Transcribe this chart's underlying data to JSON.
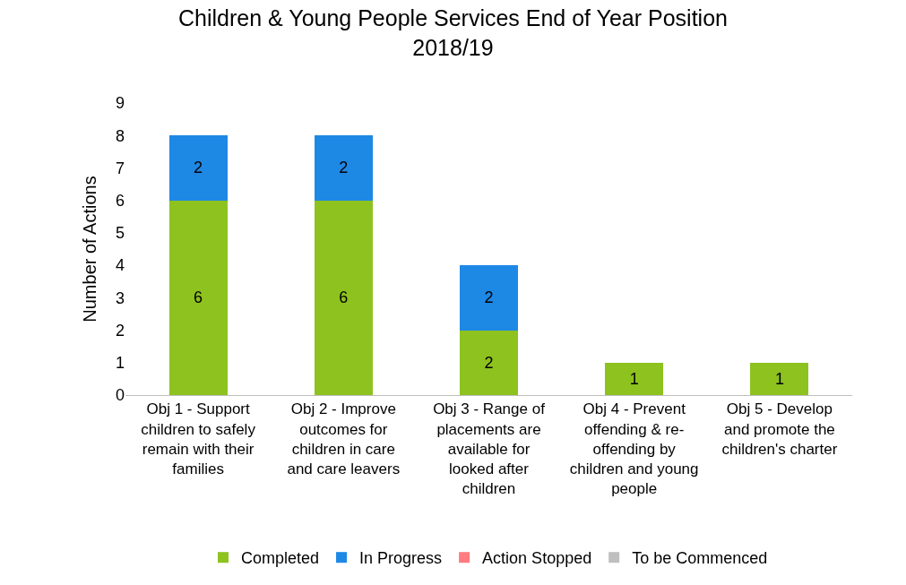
{
  "chart_data": {
    "type": "bar",
    "stacked": true,
    "title": "Children & Young People Services End of Year Position\n2018/19",
    "ylabel": "Number of Actions",
    "categories": [
      "Obj 1 - Support children to safely remain with their families",
      "Obj 2 - Improve outcomes for children in care and care leavers",
      "Obj 3 - Range of placements are available for looked after children",
      "Obj 4 - Prevent offending & re-offending by children and young people",
      "Obj 5 - Develop and promote the children's charter"
    ],
    "series": [
      {
        "name": "Completed",
        "color": "#8dc21f",
        "values": [
          6,
          6,
          2,
          1,
          1
        ],
        "value_labels": [
          "6",
          "6",
          "2",
          "1",
          "1"
        ]
      },
      {
        "name": "In Progress",
        "color": "#1e88e5",
        "values": [
          2,
          2,
          2,
          0,
          0
        ],
        "value_labels": [
          "2",
          "2",
          "2",
          null,
          null
        ]
      },
      {
        "name": "Action Stopped",
        "color": "#ff7c80",
        "values": [
          0,
          0,
          0,
          0,
          0
        ],
        "value_labels": [
          null,
          null,
          null,
          null,
          null
        ]
      },
      {
        "name": "To be Commenced",
        "color": "#bfbfbf",
        "values": [
          0,
          0,
          0,
          0,
          0
        ],
        "value_labels": [
          null,
          null,
          null,
          null,
          null
        ]
      }
    ],
    "ylim": [
      0,
      9
    ],
    "yticks": [
      0,
      1,
      2,
      3,
      4,
      5,
      6,
      7,
      8,
      9
    ],
    "grid": false,
    "legend": "bottom"
  }
}
